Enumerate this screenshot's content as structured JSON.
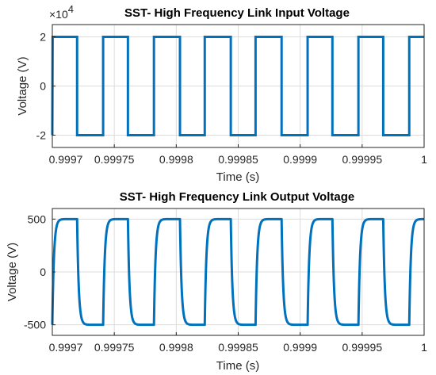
{
  "chart_data": [
    {
      "type": "line",
      "title": "SST- High Frequency Link Input Voltage",
      "xlabel": "Time (s)",
      "ylabel": "Voltage (V)",
      "xlim": [
        0.9997,
        1.0
      ],
      "ylim": [
        -25000,
        25000
      ],
      "x_ticks": [
        0.9997,
        0.99975,
        0.9998,
        0.99985,
        0.9999,
        0.99995,
        1.0
      ],
      "x_tick_labels": [
        "0.9997",
        "0.99975",
        "0.9998",
        "0.99985",
        "0.9999",
        "0.99995",
        "1"
      ],
      "y_ticks": [
        -20000,
        0,
        20000
      ],
      "y_tick_labels": [
        "-2",
        "0",
        "2"
      ],
      "y_exponent_label": "×10",
      "y_exponent_power": "4",
      "grid": true,
      "line_color": "#0072BD",
      "series": [
        {
          "waveform": "square",
          "high": 20000,
          "low": -20000,
          "x": [
            0.9997,
            0.99970025,
            0.99972,
            0.99972,
            0.999741,
            0.999741,
            0.999761,
            0.999761,
            0.999782,
            0.999782,
            0.999803,
            0.999803,
            0.999823,
            0.999823,
            0.999844,
            0.999844,
            0.999864,
            0.999864,
            0.999885,
            0.999885,
            0.999906,
            0.999906,
            0.999926,
            0.999926,
            0.999947,
            0.999947,
            0.999967,
            0.999967,
            0.999988,
            0.999988,
            1.0
          ],
          "y": [
            -20000,
            20000,
            20000,
            -20000,
            -20000,
            20000,
            20000,
            -20000,
            -20000,
            20000,
            20000,
            -20000,
            -20000,
            20000,
            20000,
            -20000,
            -20000,
            20000,
            20000,
            -20000,
            -20000,
            20000,
            20000,
            -20000,
            -20000,
            20000,
            20000,
            -20000,
            -20000,
            20000,
            20000
          ]
        }
      ]
    },
    {
      "type": "line",
      "title": "SST- High Frequency Link Output Voltage",
      "xlabel": "Time (s)",
      "ylabel": "Voltage (V)",
      "xlim": [
        0.9997,
        1.0
      ],
      "ylim": [
        -600,
        600
      ],
      "x_ticks": [
        0.9997,
        0.99975,
        0.9998,
        0.99985,
        0.9999,
        0.99995,
        1.0
      ],
      "x_tick_labels": [
        "0.9997",
        "0.99975",
        "0.9998",
        "0.99985",
        "0.9999",
        "0.99995",
        "1"
      ],
      "y_ticks": [
        -500,
        0,
        500
      ],
      "y_tick_labels": [
        "-500",
        "0",
        "500"
      ],
      "grid": true,
      "line_color": "#0072BD",
      "series": [
        {
          "waveform": "square_exponential_edges",
          "high": 500,
          "low": -500,
          "edge_time_constant_s": 1.3e-06,
          "initial_value": -500,
          "edges_x": [
            0.9997,
            0.99972,
            0.999741,
            0.999761,
            0.999782,
            0.999803,
            0.999823,
            0.999844,
            0.999864,
            0.999885,
            0.999906,
            0.999926,
            0.999947,
            0.999967,
            0.999988
          ],
          "edges_to": [
            500,
            -500,
            500,
            -500,
            500,
            -500,
            500,
            -500,
            500,
            -500,
            500,
            -500,
            500,
            -500,
            500
          ]
        }
      ]
    }
  ]
}
